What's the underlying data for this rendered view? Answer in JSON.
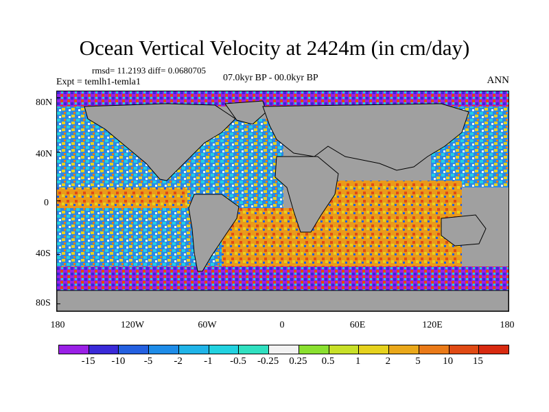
{
  "title": "Ocean Vertical Velocity at 2424m (in cm/day)",
  "stats_line": "rmsd= 11.2193 diff= 0.0680705",
  "experiment": "Expt = temlh1-temla1",
  "period": "07.0kyr BP - 00.0kyr BP",
  "season": "ANN",
  "lat_labels": [
    "80N",
    "40N",
    "0",
    "40S",
    "80S"
  ],
  "lon_labels": [
    "180",
    "120W",
    "60W",
    "0",
    "60E",
    "120E",
    "180"
  ],
  "colorbar": {
    "labels": [
      "-15",
      "-10",
      "-5",
      "-2",
      "-1",
      "-0.5",
      "-0.25",
      "0.25",
      "0.5",
      "1",
      "2",
      "5",
      "10",
      "15"
    ],
    "colors": [
      "#9a20e6",
      "#3a2ad8",
      "#2460e0",
      "#1e8ce8",
      "#20b4e8",
      "#22d2e0",
      "#30e0c0",
      "#f2f2f2",
      "#8ae030",
      "#c8e028",
      "#e6d21e",
      "#eaa81a",
      "#ea7a18",
      "#e04a14",
      "#d82a10"
    ]
  },
  "map": {
    "land_color": "#a0a0a0",
    "regions": [
      "north-pacific",
      "south-pacific",
      "equatorial-pacific",
      "north-atlantic",
      "south-atlantic",
      "indian-ocean",
      "southern-ocean",
      "arctic-ocean",
      "western-pacific"
    ]
  }
}
